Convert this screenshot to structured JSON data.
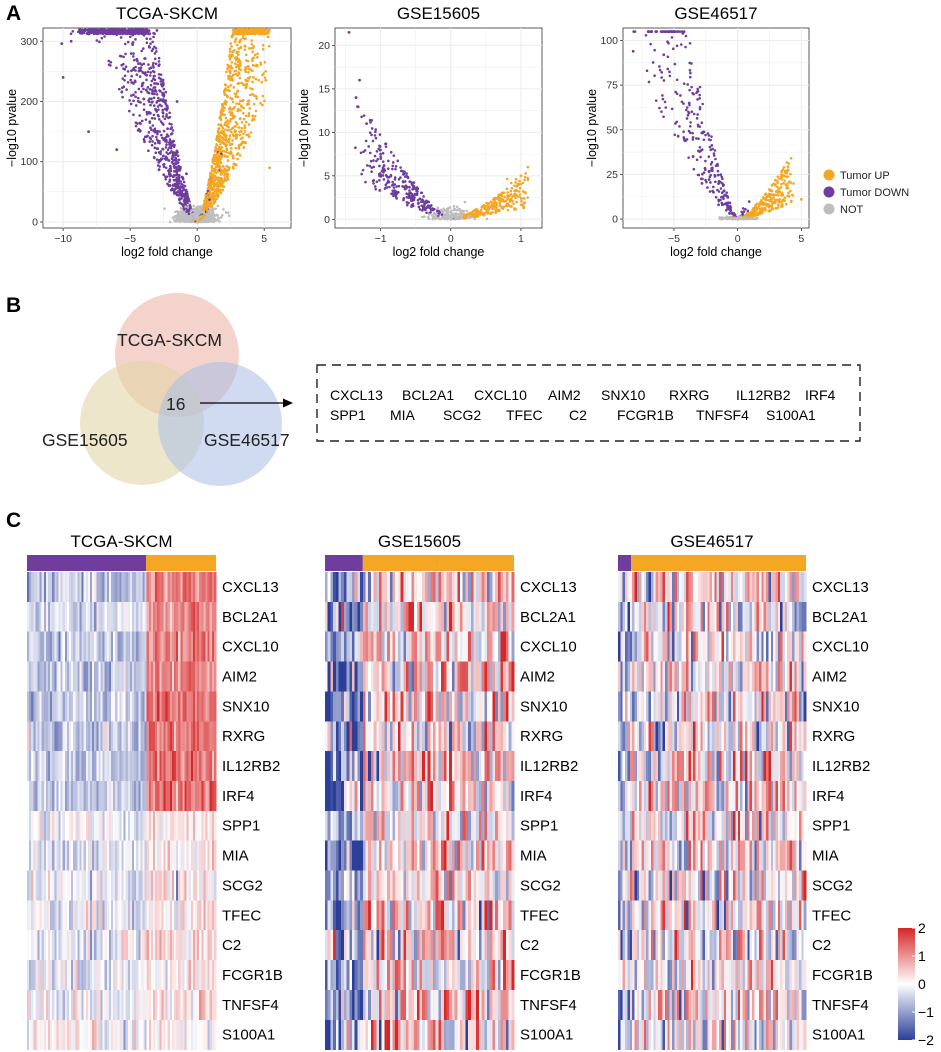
{
  "panel_labels": {
    "a": "A",
    "b": "B",
    "c": "C"
  },
  "colors": {
    "up": "#f5a623",
    "down": "#6e3d9e",
    "not": "#bebebe",
    "hm_low": "#2b3f99",
    "hm_mid": "#ffffff",
    "hm_high": "#d62728"
  },
  "volcano_legend": {
    "up": "Tumor UP",
    "down": "Tumor DOWN",
    "not": "NOT"
  },
  "venn": {
    "sets": [
      "TCGA-SKCM",
      "GSE15605",
      "GSE46517"
    ],
    "intersection": "16",
    "genes_row1": [
      "CXCL13",
      "BCL2A1",
      "CXCL10",
      "AIM2",
      "SNX10",
      "RXRG",
      "IL12RB2",
      "IRF4"
    ],
    "genes_row2": [
      "SPP1",
      "MIA",
      "SCG2",
      "TFEC",
      "C2",
      "FCGR1B",
      "TNFSF4",
      "S100A1"
    ]
  },
  "heatmap": {
    "genes": [
      "CXCL13",
      "BCL2A1",
      "CXCL10",
      "AIM2",
      "SNX10",
      "RXRG",
      "IL12RB2",
      "IRF4",
      "SPP1",
      "MIA",
      "SCG2",
      "TFEC",
      "C2",
      "FCGR1B",
      "TNFSF4",
      "S100A1"
    ],
    "colorbar_ticks": [
      "2",
      "1",
      "0",
      "−1",
      "−2"
    ],
    "colorbar_range": [
      -2,
      2
    ]
  },
  "chart_data": [
    {
      "type": "scatter",
      "title": "TCGA-SKCM",
      "xlabel": "log2 fold change",
      "ylabel": "−log10 pvalue",
      "xlim": [
        -11.5,
        7
      ],
      "ylim": [
        -10,
        322
      ],
      "xticks": [
        -10,
        -5,
        0,
        5
      ],
      "yticks": [
        0,
        100,
        200,
        300
      ],
      "xtick_labels": [
        "−10",
        "−5",
        "0",
        "5"
      ],
      "ytick_labels": [
        "0",
        "100",
        "200",
        "300"
      ],
      "groups": [
        "Tumor UP",
        "Tumor DOWN",
        "NOT"
      ],
      "sample_points": [
        [
          -10.1,
          296
        ],
        [
          -10.0,
          240
        ],
        [
          -9.4,
          300
        ],
        [
          -8.1,
          150
        ],
        [
          -6.0,
          120
        ],
        [
          -4.5,
          270
        ],
        [
          -3.0,
          318
        ],
        [
          -1.5,
          200
        ],
        [
          -0.8,
          80
        ],
        [
          1.0,
          60
        ],
        [
          1.8,
          150
        ],
        [
          2.5,
          240
        ],
        [
          3.2,
          300
        ],
        [
          4.2,
          240
        ],
        [
          5.4,
          90
        ]
      ]
    },
    {
      "type": "scatter",
      "title": "GSE15605",
      "xlabel": "log2 fold change",
      "ylabel": "−log10 pvalue",
      "xlim": [
        -1.65,
        1.3
      ],
      "ylim": [
        -1,
        22
      ],
      "xticks": [
        -1,
        0,
        1
      ],
      "yticks": [
        0,
        5,
        10,
        15,
        20
      ],
      "xtick_labels": [
        "−1",
        "0",
        "1"
      ],
      "ytick_labels": [
        "0",
        "5",
        "10",
        "15",
        "20"
      ],
      "groups": [
        "Tumor UP",
        "Tumor DOWN",
        "NOT"
      ],
      "sample_points": [
        [
          -1.45,
          21.5
        ],
        [
          -1.3,
          16
        ],
        [
          -1.35,
          14
        ],
        [
          -1.2,
          11
        ],
        [
          -1.0,
          7.5
        ],
        [
          -0.8,
          4
        ],
        [
          -0.6,
          2.5
        ],
        [
          0.5,
          1.5
        ],
        [
          0.8,
          3.5
        ],
        [
          1.0,
          5
        ],
        [
          1.1,
          6
        ]
      ]
    },
    {
      "type": "scatter",
      "title": "GSE46517",
      "xlabel": "log2 fold change",
      "ylabel": "−log10 pvalue",
      "xlim": [
        -9,
        5.6
      ],
      "ylim": [
        -5,
        107
      ],
      "xticks": [
        -5,
        0,
        5
      ],
      "yticks": [
        0,
        25,
        50,
        75,
        100
      ],
      "xtick_labels": [
        "−5",
        "0",
        "5"
      ],
      "ytick_labels": [
        "0",
        "25",
        "50",
        "75",
        "100"
      ],
      "groups": [
        "Tumor UP",
        "Tumor DOWN",
        "NOT"
      ],
      "sample_points": [
        [
          -8.2,
          94
        ],
        [
          -5.8,
          92
        ],
        [
          -4.3,
          104
        ],
        [
          -3.8,
          65
        ],
        [
          -4.2,
          45
        ],
        [
          -3.5,
          35
        ],
        [
          -2.8,
          20
        ],
        [
          -1.5,
          8
        ],
        [
          1.5,
          5
        ],
        [
          3.0,
          6
        ],
        [
          5.0,
          11
        ]
      ]
    },
    {
      "type": "heatmap",
      "title": "TCGA-SKCM",
      "group_fraction_down": 0.63,
      "genes": [
        "CXCL13",
        "BCL2A1",
        "CXCL10",
        "AIM2",
        "SNX10",
        "RXRG",
        "IL12RB2",
        "IRF4",
        "SPP1",
        "MIA",
        "SCG2",
        "TFEC",
        "C2",
        "FCGR1B",
        "TNFSF4",
        "S100A1"
      ],
      "mean_down": [
        -0.6,
        -0.4,
        -0.6,
        -0.6,
        -0.5,
        -0.5,
        -0.6,
        -0.6,
        -0.1,
        -0.3,
        -0.25,
        -0.2,
        -0.2,
        -0.2,
        -0.1,
        -0.05
      ],
      "mean_up": [
        1.2,
        1.1,
        1.2,
        1.2,
        1.3,
        1.3,
        1.3,
        1.3,
        0.3,
        0.1,
        0.2,
        0.2,
        0.3,
        0.2,
        0.2,
        0.1
      ]
    },
    {
      "type": "heatmap",
      "title": "GSE15605",
      "group_fraction_down": 0.2,
      "genes": [
        "CXCL13",
        "BCL2A1",
        "CXCL10",
        "AIM2",
        "SNX10",
        "RXRG",
        "IL12RB2",
        "IRF4",
        "SPP1",
        "MIA",
        "SCG2",
        "TFEC",
        "C2",
        "FCGR1B",
        "TNFSF4",
        "S100A1"
      ],
      "mean_down": [
        -1.2,
        -1.0,
        -1.0,
        -1.0,
        -1.2,
        -1.0,
        -1.0,
        -1.0,
        -1.0,
        -1.2,
        -1.0,
        -1.0,
        -0.8,
        -1.0,
        -1.0,
        -1.0
      ],
      "mean_up": [
        0.4,
        0.4,
        0.3,
        0.3,
        0.3,
        0.3,
        0.3,
        0.3,
        0.3,
        0.3,
        0.3,
        0.3,
        0.3,
        0.3,
        0.3,
        0.3
      ]
    },
    {
      "type": "heatmap",
      "title": "GSE46517",
      "group_fraction_down": 0.07,
      "genes": [
        "CXCL13",
        "BCL2A1",
        "CXCL10",
        "AIM2",
        "SNX10",
        "RXRG",
        "IL12RB2",
        "IRF4",
        "SPP1",
        "MIA",
        "SCG2",
        "TFEC",
        "C2",
        "FCGR1B",
        "TNFSF4",
        "S100A1"
      ],
      "mean_down": [
        -0.8,
        -0.6,
        -0.6,
        -0.6,
        -0.6,
        -0.6,
        -0.6,
        -0.6,
        -0.6,
        -0.6,
        -0.6,
        -0.6,
        -0.6,
        -0.6,
        -0.6,
        -0.6
      ],
      "mean_up": [
        0.1,
        0.1,
        0.1,
        0.1,
        0.1,
        0.1,
        0.1,
        0.1,
        0.1,
        0.1,
        0.1,
        0.1,
        0.1,
        0.1,
        0.1,
        0.1
      ]
    }
  ]
}
